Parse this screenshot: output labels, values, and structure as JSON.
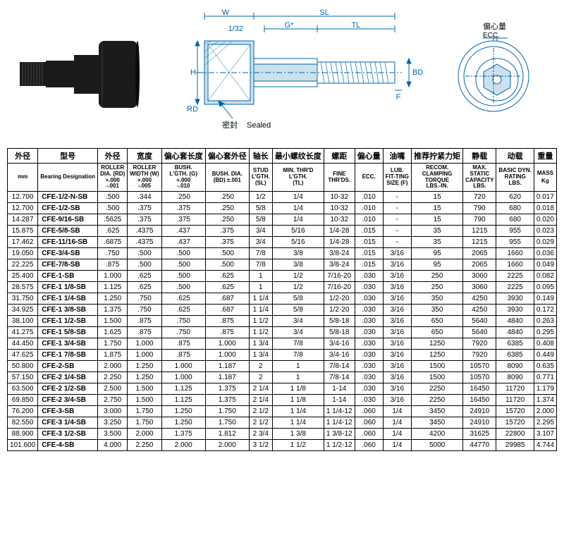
{
  "diagram": {
    "labels": {
      "W": "W",
      "SL": "SL",
      "offset": "1/32",
      "G": "G*",
      "TL": "TL",
      "H": "H",
      "RD": "RD",
      "BD": "BD",
      "F": "F",
      "ecc_cn": "偏心量",
      "ecc_en": "ECC.",
      "seal_cn": "密封",
      "seal_en": "Sealed"
    },
    "colors": {
      "line": "#0066aa",
      "fill": "#cce0ee",
      "text": "#0066aa"
    }
  },
  "headers": [
    {
      "cn": "外径",
      "en": "mm",
      "sub": ""
    },
    {
      "cn": "型号",
      "en": "Bearing Designation",
      "sub": ""
    },
    {
      "cn": "外径",
      "en": "",
      "sub": "ROLLER DIA. (RD) +.000 -.001"
    },
    {
      "cn": "宽度",
      "en": "",
      "sub": "ROLLER WIDTH (W) +.000 -.005"
    },
    {
      "cn": "偏心套长度",
      "en": "",
      "sub": "BUSH. L'GTH. (G) +.000 -.010"
    },
    {
      "cn": "偏心套外径",
      "en": "",
      "sub": "BUSH. DIA. (BD) ±.001"
    },
    {
      "cn": "轴长",
      "en": "",
      "sub": "STUD L'GTH. (SL)"
    },
    {
      "cn": "最小螺纹长度",
      "en": "",
      "sub": "MIN. THR'D L'GTH. (TL)"
    },
    {
      "cn": "螺距",
      "en": "",
      "sub": "FINE THR'DS."
    },
    {
      "cn": "偏心量",
      "en": "",
      "sub": "ECC."
    },
    {
      "cn": "油嘴",
      "en": "",
      "sub": "LUB. FIT-TING SIZE (F)"
    },
    {
      "cn": "推荐拧紧力矩",
      "en": "",
      "sub": "RECOM. CLAMPING TORQUE LBS.-IN."
    },
    {
      "cn": "静载",
      "en": "",
      "sub": "MAX. STATIC CAPACITY LBS."
    },
    {
      "cn": "动载",
      "en": "",
      "sub": "BASIC DYN. RATING LBS."
    },
    {
      "cn": "重量",
      "en": "MASS",
      "sub": "Kg"
    }
  ],
  "rows": [
    [
      "12.700",
      "CFE-1/2-N-SB",
      ".500",
      ".344",
      ".250",
      ".250",
      "1/2",
      "1/4",
      "10-32",
      ".010",
      "-",
      "15",
      "720",
      "620",
      "0.017"
    ],
    [
      "12.700",
      "CFE-1/2-SB",
      ".500",
      ".375",
      ".375",
      ".250",
      "5/8",
      "1/4",
      "10-32",
      ".010",
      "-",
      "15",
      "790",
      "680",
      "0.018"
    ],
    [
      "14.287",
      "CFE-9/16-SB",
      ".5625",
      ".375",
      ".375",
      ".250",
      "5/8",
      "1/4",
      "10-32",
      ".010",
      "-",
      "15",
      "790",
      "680",
      "0.020"
    ],
    [
      "15.875",
      "CFE-5/8-SB",
      ".625",
      ".4375",
      ".437",
      ".375",
      "3/4",
      "5/16",
      "1/4-28",
      ".015",
      "-",
      "35",
      "1215",
      "955",
      "0.023"
    ],
    [
      "17.462",
      "CFE-11/16-SB",
      ".6875",
      ".4375",
      ".437",
      ".375",
      "3/4",
      "5/16",
      "1/4-28",
      ".015",
      "-",
      "35",
      "1215",
      "955",
      "0.029"
    ],
    [
      "19.050",
      "CFE-3/4-SB",
      ".750",
      ".500",
      ".500",
      ".500",
      "7/8",
      "3/8",
      "3/8-24",
      ".015",
      "3/16",
      "95",
      "2065",
      "1660",
      "0.036"
    ],
    [
      "22.225",
      "CFE-7/8-SB",
      ".875",
      ".500",
      ".500",
      ".500",
      "7/8",
      "3/8",
      "3/8-24",
      ".015",
      "3/16",
      "95",
      "2065",
      "1660",
      "0.049"
    ],
    [
      "25.400",
      "CFE-1-SB",
      "1.000",
      ".625",
      ".500",
      ".625",
      "1",
      "1/2",
      "7/16-20",
      ".030",
      "3/16",
      "250",
      "3060",
      "2225",
      "0.082"
    ],
    [
      "28.575",
      "CFE-1 1/8-SB",
      "1.125",
      ".625",
      ".500",
      ".625",
      "1",
      "1/2",
      "7/16-20",
      ".030",
      "3/16",
      "250",
      "3060",
      "2225",
      "0.095"
    ],
    [
      "31.750",
      "CFE-1 1/4-SB",
      "1.250",
      ".750",
      ".625",
      ".687",
      "1 1/4",
      "5/8",
      "1/2-20",
      ".030",
      "3/16",
      "350",
      "4250",
      "3930",
      "0.149"
    ],
    [
      "34.925",
      "CFE-1 3/8-SB",
      "1.375",
      ".750",
      ".625",
      ".687",
      "1 1/4",
      "5/8",
      "1/2-20",
      ".030",
      "3/16",
      "350",
      "4250",
      "3930",
      "0.172"
    ],
    [
      "38.100",
      "CFE-1 1/2-SB",
      "1.500",
      ".875",
      ".750",
      ".875",
      "1 1/2",
      "3/4",
      "5/8-18",
      ".030",
      "3/16",
      "650",
      "5640",
      "4840",
      "0.263"
    ],
    [
      "41.275",
      "CFE-1 5/8-SB",
      "1.625",
      ".875",
      ".750",
      ".875",
      "1 1/2",
      "3/4",
      "5/8-18",
      ".030",
      "3/16",
      "650",
      "5640",
      "4840",
      "0.295"
    ],
    [
      "44.450",
      "CFE-1 3/4-SB",
      "1.750",
      "1.000",
      ".875",
      "1.000",
      "1 3/4",
      "7/8",
      "3/4-16",
      ".030",
      "3/16",
      "1250",
      "7920",
      "6385",
      "0.408"
    ],
    [
      "47.625",
      "CFE-1 7/8-SB",
      "1.875",
      "1.000",
      ".875",
      "1.000",
      "1 3/4",
      "7/8",
      "3/4-16",
      ".030",
      "3/16",
      "1250",
      "7920",
      "6385",
      "0.449"
    ],
    [
      "50.800",
      "CFE-2-SB",
      "2.000",
      "1.250",
      "1.000",
      "1.187",
      "2",
      "1",
      "7/8-14",
      ".030",
      "3/16",
      "1500",
      "10570",
      "8090",
      "0.635"
    ],
    [
      "57.150",
      "CFE-2 1/4-SB",
      "2.250",
      "1.250",
      "1.000",
      "1.187",
      "2",
      "1",
      "7/8-14",
      ".030",
      "3/16",
      "1500",
      "10570",
      "8090",
      "0.771"
    ],
    [
      "63.500",
      "CFE-2 1/2-SB",
      "2.500",
      "1.500",
      "1.125",
      "1.375",
      "2 1/4",
      "1 1/8",
      "1-14",
      ".030",
      "3/16",
      "2250",
      "16450",
      "11720",
      "1.179"
    ],
    [
      "69.850",
      "CFE-2 3/4-SB",
      "2.750",
      "1.500",
      "1.125",
      "1.375",
      "2 1/4",
      "1 1/8",
      "1-14",
      ".030",
      "3/16",
      "2250",
      "16450",
      "11720",
      "1.374"
    ],
    [
      "76.200",
      "CFE-3-SB",
      "3.000",
      "1.750",
      "1.250",
      "1.750",
      "2 1/2",
      "1 1/4",
      "1 1/4-12",
      ".060",
      "1/4",
      "3450",
      "24910",
      "15720",
      "2.000"
    ],
    [
      "82.550",
      "CFE-3 1/4-SB",
      "3.250",
      "1.750",
      "1.250",
      "1.750",
      "2 1/2",
      "1 1/4",
      "1 1/4-12",
      ".060",
      "1/4",
      "3450",
      "24910",
      "15720",
      "2.295"
    ],
    [
      "88.900",
      "CFE-3 1/2-SB",
      "3.500",
      "2.000",
      "1.375",
      "1.812",
      "2 3/4",
      "1 3/8",
      "1 3/8-12",
      ".060",
      "1/4",
      "4200",
      "31625",
      "22800",
      "3.107"
    ],
    [
      "101.600",
      "CFE-4-SB",
      "4.000",
      "2.250",
      "2.000",
      "2.000",
      "3 1/2",
      "1 1/2",
      "1 1/2-12",
      ".060",
      "1/4",
      "5000",
      "44770",
      "29985",
      "4.744"
    ]
  ]
}
